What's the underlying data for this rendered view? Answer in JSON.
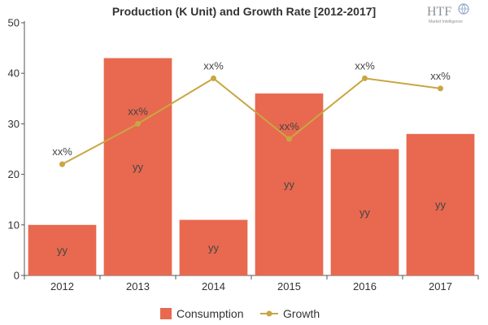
{
  "chart_data": {
    "type": "bar",
    "title": "Production (K Unit) and Growth Rate [2012-2017]",
    "categories": [
      "2012",
      "2013",
      "2014",
      "2015",
      "2016",
      "2017"
    ],
    "series": [
      {
        "name": "Consumption",
        "kind": "bar",
        "color": "#e8694f",
        "values": [
          10,
          43,
          11,
          36,
          25,
          28
        ],
        "labels": [
          "yy",
          "yy",
          "yy",
          "yy",
          "yy",
          "yy"
        ]
      },
      {
        "name": "Growth",
        "kind": "line",
        "color": "#c9a642",
        "values": [
          22,
          30,
          39,
          27,
          39,
          37
        ],
        "labels": [
          "xx%",
          "xx%",
          "xx%",
          "xx%",
          "xx%",
          "xx%"
        ]
      }
    ],
    "ylim": [
      0,
      50
    ],
    "yticks": [
      0,
      10,
      20,
      30,
      40,
      50
    ],
    "xlabel": "",
    "ylabel": "",
    "legend_position": "bottom-center",
    "grid": false
  },
  "logo": {
    "brand": "HTF",
    "tagline": "Market Intelligence",
    "color": "#8a9099"
  }
}
